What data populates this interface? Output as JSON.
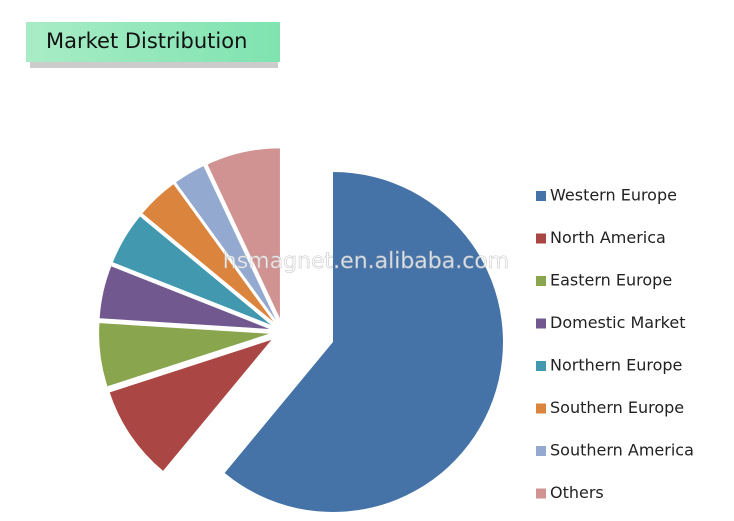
{
  "chart_data": {
    "type": "pie",
    "title": "Market Distribution",
    "categories": [
      "Western Europe",
      "North America",
      "Eastern Europe",
      "Domestic Market",
      "Northern Europe",
      "Southern Europe",
      "Southern America",
      "Others"
    ],
    "values": [
      61,
      9,
      6,
      5,
      5,
      4,
      3,
      7
    ],
    "colors": [
      "#4572a7",
      "#aa4643",
      "#89a54e",
      "#71588f",
      "#4198af",
      "#db843d",
      "#93a9cf",
      "#d19392"
    ],
    "watermark": "hsmagnet.en.alibaba.com"
  }
}
